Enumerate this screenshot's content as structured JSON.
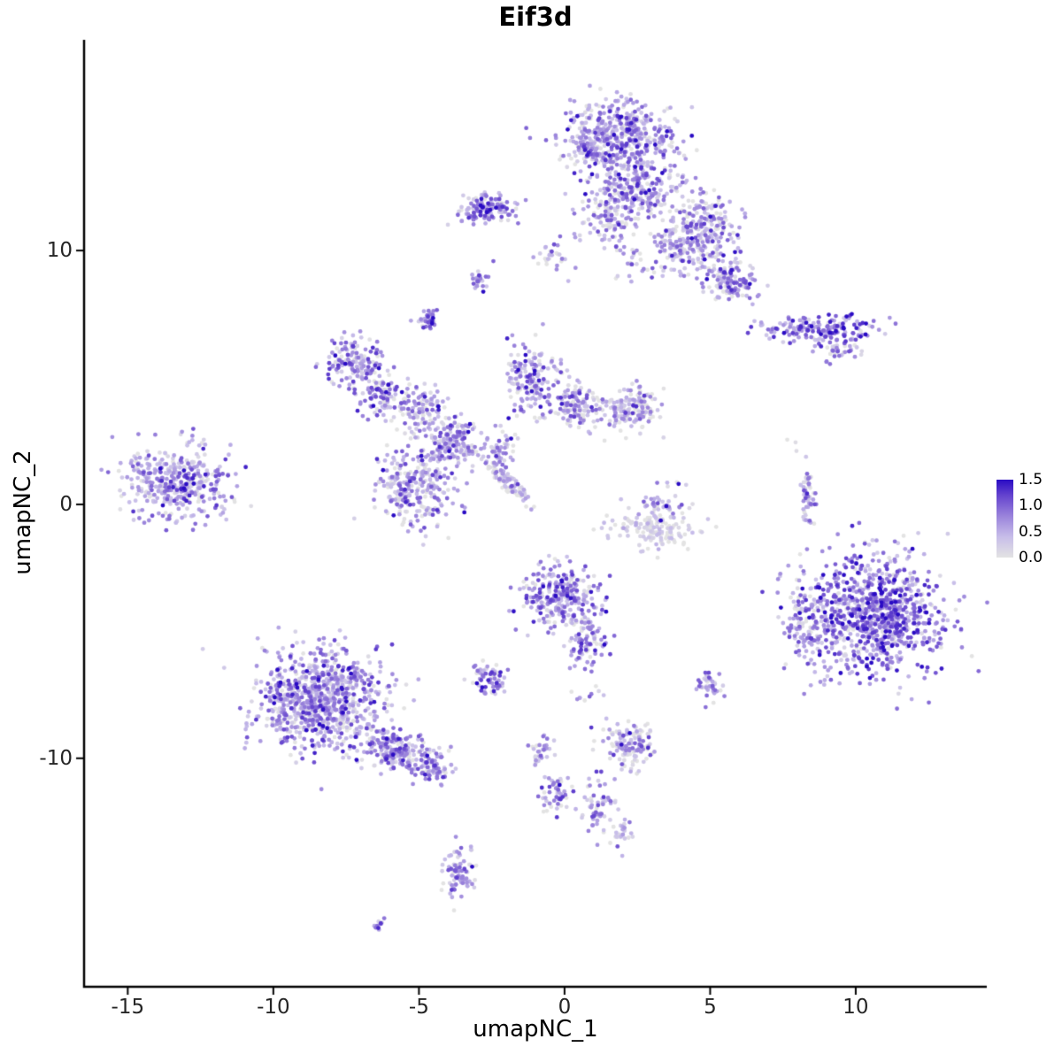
{
  "chart_data": {
    "type": "scatter",
    "title": "Eif3d",
    "xlabel": "umapNC_1",
    "ylabel": "umapNC_2",
    "xlim": [
      -16.5,
      14.5
    ],
    "ylim": [
      -19.0,
      18.3
    ],
    "x_ticks": [
      "-15",
      "-10",
      "-5",
      "0",
      "5",
      "10"
    ],
    "y_ticks": [
      "-10",
      "0",
      "10"
    ],
    "grid": false,
    "background": "#FFFFFF",
    "point_radius": 2.4,
    "seed": 42,
    "legend": {
      "title": "",
      "position": "right",
      "min": 0.0,
      "max": 1.5,
      "ticks": [
        "1.5",
        "1.0",
        "0.5",
        "0.0"
      ]
    },
    "color_scale": [
      [
        0.0,
        "#E3E3E3"
      ],
      [
        0.4,
        "#C7BDE9"
      ],
      [
        0.8,
        "#9A83DB"
      ],
      [
        1.2,
        "#6443CE"
      ],
      [
        1.5,
        "#2A0BC4"
      ]
    ],
    "clusters": [
      {
        "name": "top-main",
        "x": 1.8,
        "y": 14.4,
        "sx": 0.95,
        "sy": 0.75,
        "n": 520,
        "e": 0.55
      },
      {
        "name": "top-lower",
        "x": 2.4,
        "y": 12.4,
        "sx": 0.8,
        "sy": 0.6,
        "n": 260,
        "e": 0.5
      },
      {
        "name": "top-neck",
        "x": 1.5,
        "y": 11.2,
        "sx": 0.5,
        "sy": 0.5,
        "n": 80,
        "e": 0.45
      },
      {
        "name": "neck-left",
        "x": -0.3,
        "y": 9.9,
        "sx": 0.35,
        "sy": 0.4,
        "n": 30,
        "e": 0.4
      },
      {
        "name": "bridge",
        "x": 2.2,
        "y": 9.6,
        "sx": 0.45,
        "sy": 0.35,
        "n": 25,
        "e": 0.45
      },
      {
        "name": "knot",
        "x": 3.5,
        "y": 10.4,
        "sx": 0.25,
        "sy": 0.25,
        "n": 35,
        "e": 0.55
      },
      {
        "name": "topright-arm",
        "x": 4.8,
        "y": 10.9,
        "sx": 0.55,
        "sy": 0.6,
        "n": 220,
        "e": 0.5
      },
      {
        "name": "topright-tail",
        "x": 5.7,
        "y": 8.8,
        "sx": 0.45,
        "sy": 0.4,
        "n": 130,
        "e": 0.55
      },
      {
        "name": "topright-mid",
        "x": 4.0,
        "y": 9.8,
        "sx": 0.5,
        "sy": 0.4,
        "n": 70,
        "e": 0.4
      },
      {
        "name": "topleft-small",
        "x": -2.7,
        "y": 11.6,
        "sx": 0.55,
        "sy": 0.3,
        "n": 130,
        "e": 0.6
      },
      {
        "name": "dot-a",
        "x": -2.9,
        "y": 8.9,
        "sx": 0.15,
        "sy": 0.2,
        "n": 25,
        "e": 0.75
      },
      {
        "name": "dot-b",
        "x": -4.7,
        "y": 7.3,
        "sx": 0.18,
        "sy": 0.25,
        "n": 35,
        "e": 0.7
      },
      {
        "name": "right-strip",
        "x": 8.7,
        "y": 6.9,
        "sx": 0.95,
        "sy": 0.28,
        "n": 170,
        "e": 0.8
      },
      {
        "name": "right-strip-tail",
        "x": 9.4,
        "y": 6.1,
        "sx": 0.3,
        "sy": 0.25,
        "n": 40,
        "e": 0.6
      },
      {
        "name": "web-1",
        "x": -7.2,
        "y": 5.6,
        "sx": 0.5,
        "sy": 0.5,
        "n": 150,
        "e": 0.6
      },
      {
        "name": "web-2",
        "x": -6.3,
        "y": 4.3,
        "sx": 0.4,
        "sy": 0.45,
        "n": 90,
        "e": 0.55
      },
      {
        "name": "web-3",
        "x": -4.9,
        "y": 3.7,
        "sx": 0.5,
        "sy": 0.45,
        "n": 110,
        "e": 0.5
      },
      {
        "name": "web-4",
        "x": -3.7,
        "y": 2.6,
        "sx": 0.4,
        "sy": 0.5,
        "n": 90,
        "e": 0.5
      },
      {
        "name": "web-5",
        "x": -1.1,
        "y": 4.9,
        "sx": 0.5,
        "sy": 0.65,
        "n": 170,
        "e": 0.55
      },
      {
        "name": "web-6",
        "x": 0.4,
        "y": 3.9,
        "sx": 0.45,
        "sy": 0.45,
        "n": 120,
        "e": 0.5
      },
      {
        "name": "web-7-gray",
        "x": 2.2,
        "y": 3.8,
        "sx": 0.5,
        "sy": 0.4,
        "n": 160,
        "e": 0.25
      },
      {
        "name": "web-8",
        "x": -2.3,
        "y": 2.1,
        "sx": 0.35,
        "sy": 0.35,
        "n": 60,
        "e": 0.5
      },
      {
        "name": "streak",
        "x": -1.95,
        "y": 0.9,
        "sx": 0.55,
        "sy": 0.12,
        "rot": -47,
        "n": 90,
        "e": 0.3
      },
      {
        "name": "far-left",
        "x": -13.3,
        "y": 0.9,
        "sx": 0.95,
        "sy": 0.75,
        "n": 400,
        "e": 0.5
      },
      {
        "name": "midleft",
        "x": -5.1,
        "y": 0.7,
        "sx": 0.7,
        "sy": 0.8,
        "n": 280,
        "e": 0.5
      },
      {
        "name": "midleft-arm",
        "x": -3.9,
        "y": 2.2,
        "sx": 0.4,
        "sy": 0.4,
        "n": 60,
        "e": 0.5
      },
      {
        "name": "gray-arc",
        "x": 3.2,
        "y": -0.9,
        "sx": 0.75,
        "sy": 0.4,
        "n": 150,
        "e": 0.12,
        "esd": 0.2
      },
      {
        "name": "gray-arc-top",
        "x": 3.3,
        "y": -0.1,
        "sx": 0.4,
        "sy": 0.25,
        "n": 30,
        "e": 0.5
      },
      {
        "name": "sliver",
        "x": 8.35,
        "y": 0.3,
        "sx": 0.12,
        "sy": 0.55,
        "n": 55,
        "e": 0.45
      },
      {
        "name": "big-right",
        "x": 10.6,
        "y": -4.4,
        "sx": 1.25,
        "sy": 1.15,
        "n": 950,
        "e": 0.75
      },
      {
        "name": "big-right-fringe",
        "x": 8.3,
        "y": -4.6,
        "sx": 0.4,
        "sy": 0.8,
        "n": 90,
        "e": 0.5
      },
      {
        "name": "center",
        "x": -0.2,
        "y": -3.6,
        "sx": 0.65,
        "sy": 0.6,
        "n": 270,
        "e": 0.6
      },
      {
        "name": "center-arm",
        "x": 0.7,
        "y": -5.4,
        "sx": 0.35,
        "sy": 0.5,
        "n": 90,
        "e": 0.5
      },
      {
        "name": "small-left",
        "x": -2.6,
        "y": -6.9,
        "sx": 0.3,
        "sy": 0.3,
        "n": 60,
        "e": 0.6
      },
      {
        "name": "big-bottomleft",
        "x": -8.4,
        "y": -7.7,
        "sx": 1.05,
        "sy": 0.95,
        "n": 850,
        "e": 0.55
      },
      {
        "name": "bottomleft-arm",
        "x": -5.8,
        "y": -9.7,
        "sx": 0.75,
        "sy": 0.4,
        "rot": -20,
        "n": 230,
        "e": 0.55
      },
      {
        "name": "bottomleft-tip",
        "x": -4.5,
        "y": -10.4,
        "sx": 0.3,
        "sy": 0.25,
        "n": 60,
        "e": 0.6
      },
      {
        "name": "small-right",
        "x": 4.9,
        "y": -7.2,
        "sx": 0.22,
        "sy": 0.3,
        "n": 40,
        "e": 0.5
      },
      {
        "name": "bottom-mid",
        "x": 2.3,
        "y": -9.4,
        "sx": 0.45,
        "sy": 0.5,
        "n": 130,
        "e": 0.45
      },
      {
        "name": "bits-1",
        "x": -0.8,
        "y": -9.7,
        "sx": 0.25,
        "sy": 0.3,
        "n": 30,
        "e": 0.4
      },
      {
        "name": "bits-2",
        "x": -0.3,
        "y": -11.4,
        "sx": 0.3,
        "sy": 0.35,
        "n": 50,
        "e": 0.5
      },
      {
        "name": "thread",
        "x": 1.2,
        "y": -11.9,
        "sx": 0.3,
        "sy": 0.55,
        "n": 60,
        "e": 0.5
      },
      {
        "name": "thread-tip",
        "x": 2.0,
        "y": -13.0,
        "sx": 0.2,
        "sy": 0.25,
        "n": 25,
        "e": 0.4
      },
      {
        "name": "bottom-small",
        "x": -3.6,
        "y": -14.4,
        "sx": 0.25,
        "sy": 0.55,
        "n": 75,
        "e": 0.6
      },
      {
        "name": "lone-bottom",
        "x": -6.4,
        "y": -16.6,
        "sx": 0.12,
        "sy": 0.12,
        "n": 12,
        "e": 0.5
      },
      {
        "name": "lone-gray",
        "x": 7.9,
        "y": 2.4,
        "sx": 0.15,
        "sy": 0.15,
        "n": 3,
        "e": 0.1,
        "esd": 0.1
      },
      {
        "name": "sparse-a",
        "x": 3.6,
        "y": 0.9,
        "sx": 0.3,
        "sy": 0.2,
        "n": 6,
        "e": 0.4
      },
      {
        "name": "sparse-b",
        "x": 0.8,
        "y": -7.4,
        "sx": 0.5,
        "sy": 0.4,
        "n": 10,
        "e": 0.3
      }
    ]
  }
}
